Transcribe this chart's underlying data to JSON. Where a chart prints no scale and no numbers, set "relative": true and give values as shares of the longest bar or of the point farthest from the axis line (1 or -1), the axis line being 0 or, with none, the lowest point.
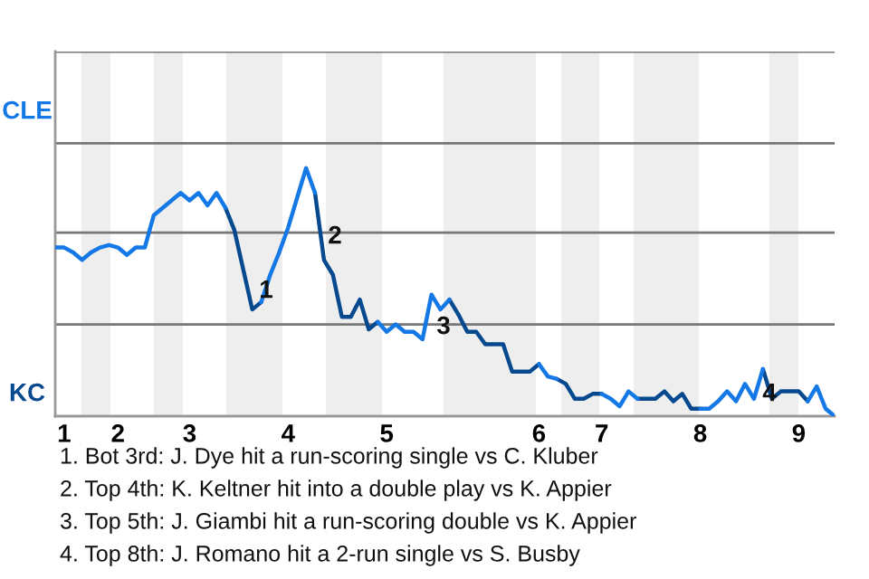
{
  "chart_data": {
    "type": "line",
    "relative": true,
    "categories": [
      null,
      "1",
      null,
      null,
      null,
      null,
      null,
      "2",
      null,
      null,
      null,
      null,
      null,
      null,
      null,
      "3",
      null,
      null,
      null,
      null,
      null,
      null,
      null,
      null,
      null,
      null,
      "4",
      null,
      null,
      null,
      null,
      null,
      null,
      null,
      null,
      null,
      null,
      "5",
      null,
      null,
      null,
      null,
      null,
      null,
      null,
      null,
      null,
      null,
      null,
      null,
      null,
      null,
      null,
      null,
      "6",
      null,
      null,
      null,
      null,
      null,
      null,
      "7",
      null,
      null,
      null,
      null,
      null,
      null,
      null,
      null,
      null,
      null,
      "8",
      null,
      null,
      null,
      null,
      null,
      null,
      null,
      null,
      null,
      null,
      "9",
      null,
      null,
      null,
      null
    ],
    "line_style": "solid",
    "ref_lines": [
      {
        "axis": "y",
        "value": 0.37,
        "color": "#777777"
      },
      {
        "axis": "y",
        "value": 0.74,
        "color": "#777777"
      },
      {
        "axis": "y",
        "value": 1.1,
        "color": "#777777"
      },
      {
        "axis": "y",
        "value": 1.47,
        "color": "#777777"
      }
    ],
    "series": [
      {
        "color": "#1479e6",
        "values": [
          0.68,
          0.68,
          0.66,
          0.63,
          0.66,
          0.68,
          0.69,
          0.68,
          0.65,
          0.68,
          0.68,
          0.81,
          0.84,
          0.87,
          0.9,
          0.87,
          0.9,
          0.85,
          0.9,
          0.84,
          null,
          null,
          null,
          0.46,
          0.57,
          0.66,
          0.76,
          0.88,
          1,
          0.9,
          null,
          null,
          null,
          null,
          null,
          null,
          0.38,
          0.34,
          0.37,
          0.34,
          0.34,
          0.31,
          0.49,
          0.43,
          0.47,
          null,
          null,
          null,
          null,
          null,
          null,
          null,
          null,
          null,
          0.21,
          0.16,
          0.15,
          null,
          null,
          null,
          null,
          0.09,
          0.07,
          0.04,
          0.1,
          0.07,
          null,
          null,
          null,
          null,
          null,
          null,
          0.03,
          0.03,
          0.06,
          0.1,
          0.06,
          0.13,
          0.07,
          0.19,
          null,
          null,
          null,
          null,
          0.06,
          0.12,
          0.03,
          0
        ]
      },
      {
        "color": "#06498f",
        "values": [
          null,
          null,
          null,
          null,
          null,
          null,
          null,
          null,
          null,
          null,
          null,
          null,
          null,
          null,
          null,
          null,
          null,
          null,
          null,
          0.84,
          0.75,
          0.59,
          0.43,
          0.46,
          null,
          null,
          null,
          null,
          null,
          0.9,
          0.63,
          0.57,
          0.4,
          0.4,
          0.47,
          0.35,
          0.38,
          null,
          null,
          null,
          null,
          null,
          null,
          null,
          0.47,
          0.41,
          0.34,
          0.34,
          0.29,
          0.29,
          0.29,
          0.18,
          0.18,
          0.18,
          0.21,
          null,
          0.15,
          0.13,
          0.07,
          0.07,
          0.09,
          0.09,
          null,
          null,
          null,
          0.07,
          0.07,
          0.07,
          0.1,
          0.06,
          0.09,
          0.03,
          0.03,
          null,
          null,
          null,
          null,
          null,
          null,
          0.19,
          0.07,
          0.1,
          0.1,
          0.1,
          0.06,
          null,
          null,
          null
        ]
      }
    ],
    "annotations": [
      "CLE",
      "KC",
      "1",
      "2",
      "3",
      "4",
      "1. Bot 3rd: J. Dye hit a run-scoring single vs C. Kluber",
      "2. Top 4th: K. Keltner hit into a double play vs K. Appier",
      "3. Top 5th: J. Giambi hit a run-scoring double vs K. Appier",
      "4. Top 8th: J. Romano hit a 2-run single vs S. Busby"
    ]
  }
}
